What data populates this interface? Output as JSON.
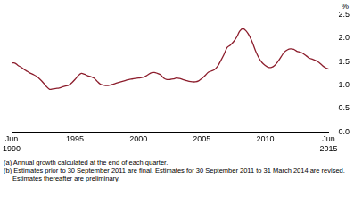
{
  "chart_data": {
    "type": "line",
    "ylabel": "%",
    "annotations": [
      "(a) Annual growth calculated at the end of each quarter.",
      "(b) Estimates prior to 30 September 2011 are final. Estimates for 30 September 2011 to 31 March 2014 are revised. Estimates thereafter are preliminary."
    ],
    "categories": [
      "Jun 1990",
      null,
      null,
      null,
      null,
      null,
      null,
      null,
      null,
      null,
      null,
      null,
      null,
      null,
      null,
      null,
      null,
      null,
      null,
      null,
      "1995",
      null,
      null,
      null,
      null,
      null,
      null,
      null,
      null,
      null,
      null,
      null,
      null,
      null,
      null,
      null,
      null,
      null,
      null,
      null,
      "2000",
      null,
      null,
      null,
      null,
      null,
      null,
      null,
      null,
      null,
      null,
      null,
      null,
      null,
      null,
      null,
      null,
      null,
      null,
      null,
      "2005",
      null,
      null,
      null,
      null,
      null,
      null,
      null,
      null,
      null,
      null,
      null,
      null,
      null,
      null,
      null,
      null,
      null,
      null,
      null,
      "2010",
      null,
      null,
      null,
      null,
      null,
      null,
      null,
      null,
      null,
      null,
      null,
      null,
      null,
      null,
      null,
      null,
      null,
      null,
      null,
      "Jun 2015"
    ],
    "values": [
      1.47,
      1.47,
      1.42,
      1.38,
      1.33,
      1.29,
      1.25,
      1.22,
      1.18,
      1.12,
      1.05,
      0.97,
      0.91,
      0.92,
      0.93,
      0.94,
      0.96,
      0.98,
      1.0,
      1.05,
      1.12,
      1.2,
      1.25,
      1.23,
      1.2,
      1.18,
      1.15,
      1.08,
      1.02,
      1.0,
      0.99,
      1.0,
      1.02,
      1.04,
      1.06,
      1.08,
      1.1,
      1.12,
      1.13,
      1.14,
      1.15,
      1.16,
      1.18,
      1.22,
      1.26,
      1.27,
      1.25,
      1.22,
      1.15,
      1.12,
      1.12,
      1.13,
      1.15,
      1.14,
      1.12,
      1.1,
      1.08,
      1.07,
      1.07,
      1.09,
      1.14,
      1.2,
      1.27,
      1.3,
      1.33,
      1.4,
      1.52,
      1.65,
      1.8,
      1.85,
      1.92,
      2.02,
      2.15,
      2.2,
      2.15,
      2.05,
      1.9,
      1.72,
      1.58,
      1.48,
      1.42,
      1.38,
      1.38,
      1.42,
      1.5,
      1.6,
      1.7,
      1.75,
      1.77,
      1.76,
      1.72,
      1.7,
      1.67,
      1.62,
      1.57,
      1.55,
      1.52,
      1.48,
      1.42,
      1.37,
      1.34
    ],
    "color": "#8c1d2c",
    "ylim": [
      0,
      2.5
    ],
    "yticks": [
      {
        "value": 0,
        "label": "0.0"
      },
      {
        "value": 0.5,
        "label": "0.5"
      },
      {
        "value": 1,
        "label": "1.0"
      },
      {
        "value": 1.5,
        "label": "1.5"
      },
      {
        "value": 2,
        "label": "2.0"
      },
      {
        "value": 2.5,
        "label": "2.5"
      }
    ],
    "grid": false
  }
}
